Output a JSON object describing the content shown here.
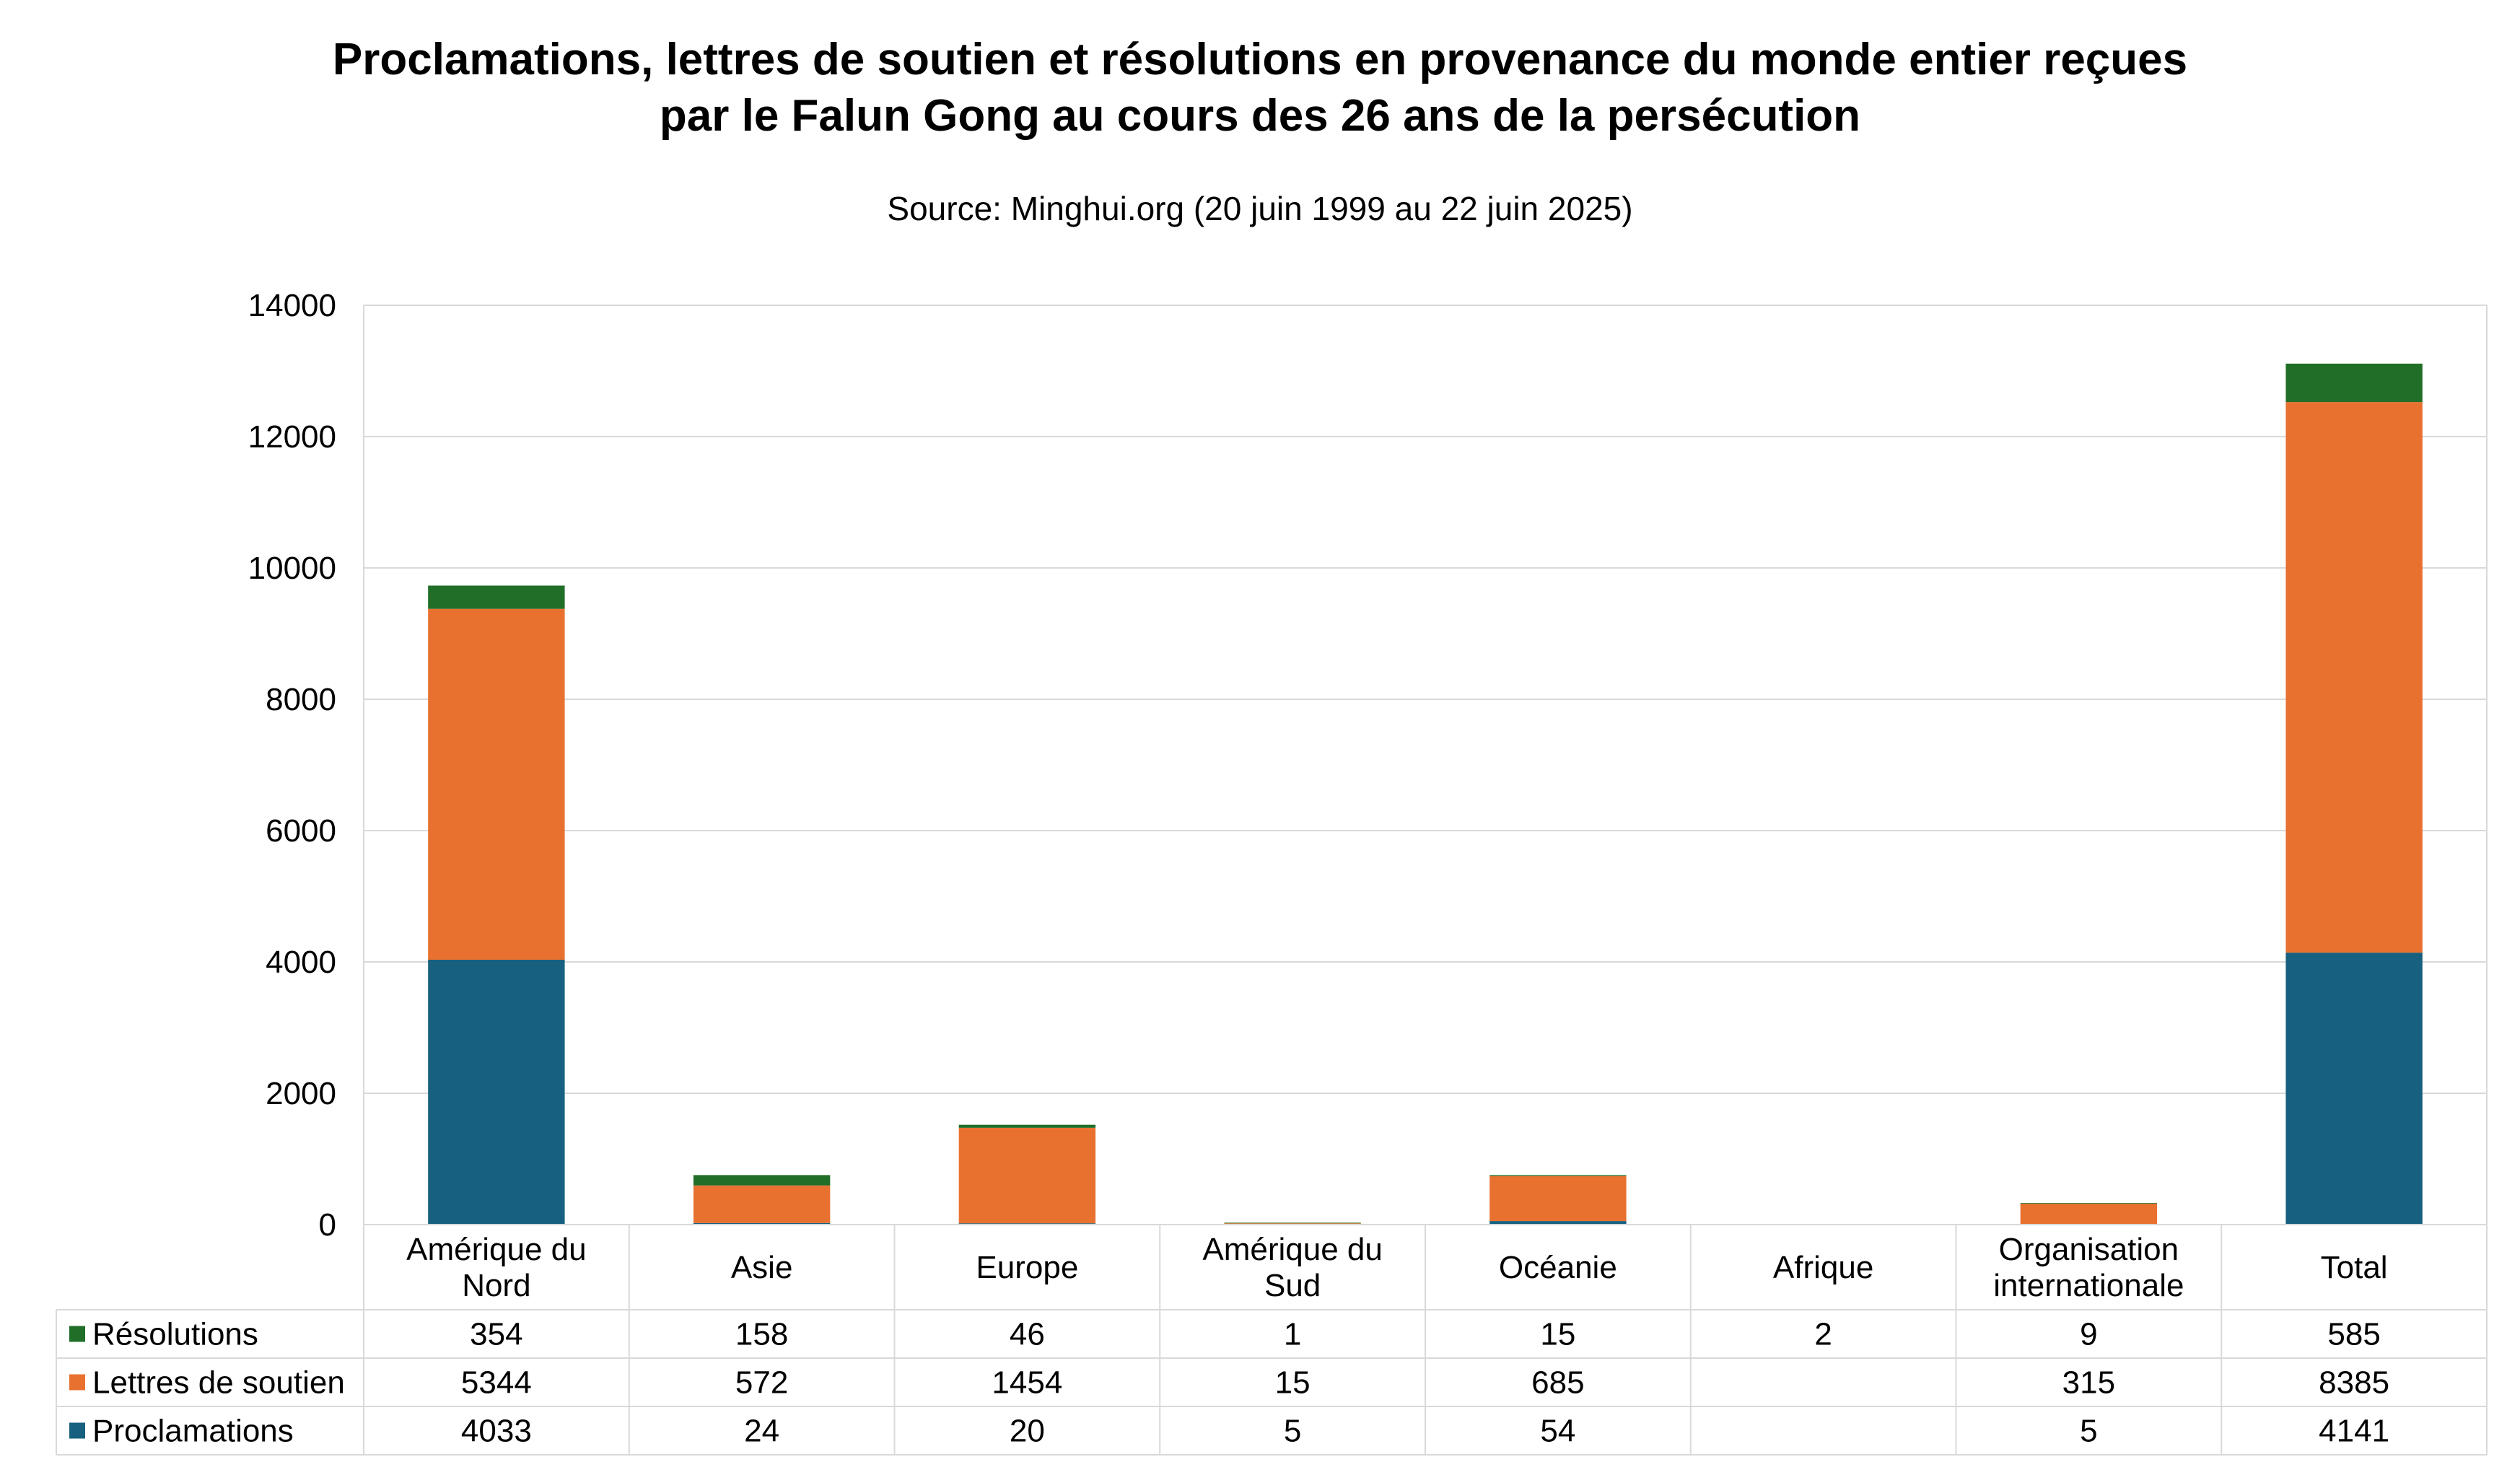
{
  "title_line1": "Proclamations, lettres de soutien et résolutions en provenance du monde entier reçues",
  "title_line2": "par le Falun Gong au cours des 26 ans de la persécution",
  "subtitle": "Source: Minghui.org (20 juin 1999 au 22 juin 2025)",
  "chart_data": {
    "type": "bar",
    "stacked": true,
    "categories": [
      [
        "Amérique du",
        "Nord"
      ],
      [
        "Asie"
      ],
      [
        "Europe"
      ],
      [
        "Amérique du",
        "Sud"
      ],
      [
        "Océanie"
      ],
      [
        "Afrique"
      ],
      [
        "Organisation",
        "internationale"
      ],
      [
        "Total"
      ]
    ],
    "y_ticks": [
      "0",
      "2000",
      "4000",
      "6000",
      "8000",
      "10000",
      "12000",
      "14000"
    ],
    "ylim": [
      0,
      14000
    ],
    "grid": true,
    "legend": "data-table",
    "series": [
      {
        "name": "Proclamations",
        "color": "#17607f",
        "values": [
          4033,
          24,
          20,
          5,
          54,
          null,
          5,
          4141
        ]
      },
      {
        "name": "Lettres de soutien",
        "color": "#e87130",
        "values": [
          5344,
          572,
          1454,
          15,
          685,
          null,
          315,
          8385
        ]
      },
      {
        "name": "Résolutions",
        "color": "#206e28",
        "values": [
          354,
          158,
          46,
          1,
          15,
          2,
          9,
          585
        ]
      }
    ],
    "table_row_order": [
      "Résolutions",
      "Lettres de soutien",
      "Proclamations"
    ]
  }
}
